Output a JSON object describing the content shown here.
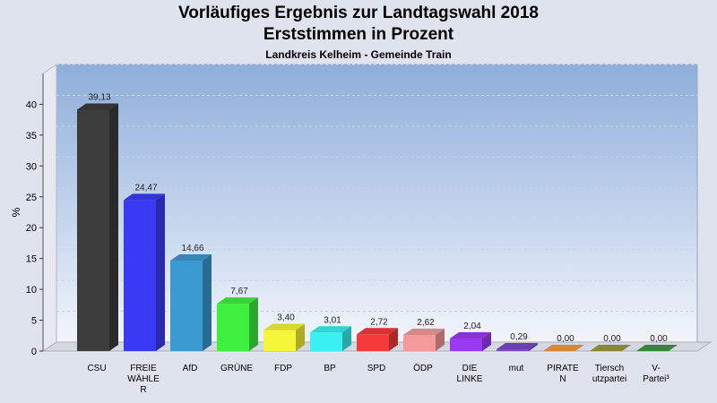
{
  "title": "Vorläufiges Ergebnis zur Landtagswahl 2018",
  "subtitle": "Erststimmen in Prozent",
  "subsubtitle": "Landkreis Kelheim   - Gemeinde Train",
  "chart_data": {
    "type": "bar",
    "ylabel": "%",
    "ylim": [
      0,
      45
    ],
    "yticks": [
      "0",
      "5",
      "10",
      "15",
      "20",
      "25",
      "30",
      "35",
      "40"
    ],
    "grid": true,
    "categories": [
      [
        "CSU"
      ],
      [
        "FREIE",
        "WÄHLE",
        "R"
      ],
      [
        "AfD"
      ],
      [
        "GRÜNE"
      ],
      [
        "FDP"
      ],
      [
        "BP"
      ],
      [
        "SPD"
      ],
      [
        "ÖDP"
      ],
      [
        "DIE",
        "LINKE"
      ],
      [
        "mut"
      ],
      [
        "PIRATE",
        "N"
      ],
      [
        "Tiersch",
        "utzpartei"
      ],
      [
        "V-",
        "Partei³"
      ]
    ],
    "values": [
      39.13,
      24.47,
      14.66,
      7.67,
      3.4,
      3.01,
      2.72,
      2.62,
      2.04,
      0.29,
      0.0,
      0.0,
      0.0
    ],
    "labels": [
      "39,13",
      "24,47",
      "14,66",
      "7,67",
      "3,40",
      "3,01",
      "2,72",
      "2,62",
      "2,04",
      "0,29",
      "0,00",
      "0,00",
      "0,00"
    ],
    "colors": [
      "#3c3c3c",
      "#3a3af5",
      "#3a9ad2",
      "#3ef03e",
      "#f5f53a",
      "#3af0f0",
      "#f53a3a",
      "#f59a9a",
      "#9a3af5",
      "#7a4ac8",
      "#f59a3a",
      "#9a9a3a",
      "#3a9a3a"
    ]
  }
}
